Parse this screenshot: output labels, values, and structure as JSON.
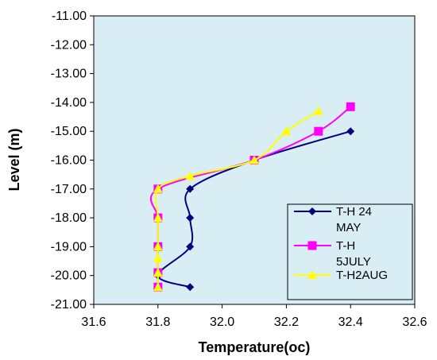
{
  "chart_data": {
    "type": "line",
    "xlabel": "Temperature(oc)",
    "ylabel": "Level (m)",
    "xlim": [
      31.6,
      32.6
    ],
    "ylim": [
      -21.0,
      -11.0
    ],
    "x_ticks": [
      "31.6",
      "31.8",
      "32.0",
      "32.2",
      "32.4",
      "32.6"
    ],
    "y_ticks": [
      "-11.00",
      "-12.00",
      "-13.00",
      "-14.00",
      "-15.00",
      "-16.00",
      "-17.00",
      "-18.00",
      "-19.00",
      "-20.00",
      "-21.00"
    ],
    "plot_background": "#d9edf4",
    "legend_position": "bottom-right",
    "series": [
      {
        "name": "T-H 24 MAY",
        "legend_lines": [
          "T-H 24",
          "MAY"
        ],
        "color": "#000080",
        "marker": "diamond",
        "points": [
          {
            "x": 32.4,
            "y": -15.0
          },
          {
            "x": 32.1,
            "y": -16.0
          },
          {
            "x": 31.9,
            "y": -17.0
          },
          {
            "x": 31.9,
            "y": -18.0
          },
          {
            "x": 31.9,
            "y": -19.0
          },
          {
            "x": 31.8,
            "y": -20.0
          },
          {
            "x": 31.9,
            "y": -20.4
          }
        ]
      },
      {
        "name": "T-H 5JULY",
        "legend_lines": [
          "T-H",
          "5JULY"
        ],
        "color": "#ff00ff",
        "marker": "square",
        "points": [
          {
            "x": 32.4,
            "y": -14.15
          },
          {
            "x": 32.3,
            "y": -15.0
          },
          {
            "x": 32.1,
            "y": -16.0
          },
          {
            "x": 31.8,
            "y": -17.0
          },
          {
            "x": 31.8,
            "y": -18.0
          },
          {
            "x": 31.8,
            "y": -19.0
          },
          {
            "x": 31.8,
            "y": -19.9
          },
          {
            "x": 31.8,
            "y": -20.4
          }
        ]
      },
      {
        "name": "T-H2AUG",
        "legend_lines": [
          "T-H2AUG"
        ],
        "color": "#ffff00",
        "marker": "triangle",
        "points": [
          {
            "x": 32.3,
            "y": -14.3
          },
          {
            "x": 32.2,
            "y": -15.0
          },
          {
            "x": 32.1,
            "y": -16.0
          },
          {
            "x": 31.9,
            "y": -16.55
          },
          {
            "x": 31.8,
            "y": -17.0
          },
          {
            "x": 31.8,
            "y": -18.0
          },
          {
            "x": 31.8,
            "y": -19.0
          },
          {
            "x": 31.8,
            "y": -19.4
          },
          {
            "x": 31.8,
            "y": -19.9
          },
          {
            "x": 31.8,
            "y": -20.4
          }
        ]
      }
    ]
  }
}
